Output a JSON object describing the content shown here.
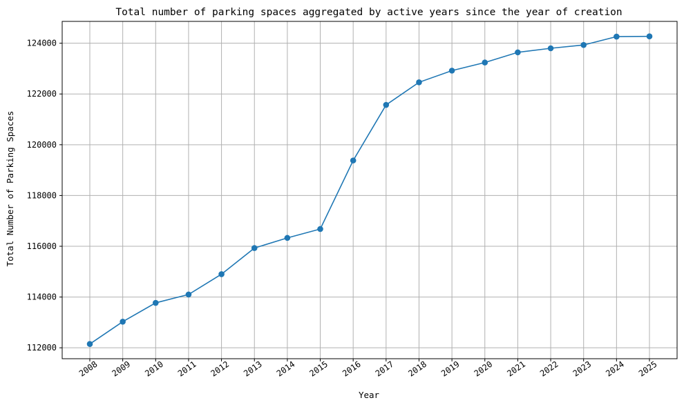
{
  "chart_data": {
    "type": "line",
    "title": "Total number of parking spaces aggregated by active years since the year of creation",
    "xlabel": "Year",
    "ylabel": "Total Number of Parking Spaces",
    "categories": [
      "2008",
      "2009",
      "2010",
      "2011",
      "2012",
      "2013",
      "2014",
      "2015",
      "2016",
      "2017",
      "2018",
      "2019",
      "2020",
      "2021",
      "2022",
      "2023",
      "2024",
      "2025"
    ],
    "values": [
      112150,
      113030,
      113770,
      114100,
      114900,
      115930,
      116330,
      116680,
      119380,
      121570,
      122460,
      122920,
      123240,
      123640,
      123800,
      123930,
      124260,
      124270
    ],
    "ylim": [
      111570,
      124860
    ],
    "yticks": [
      112000,
      114000,
      116000,
      118000,
      120000,
      122000,
      124000
    ],
    "ytick_labels": [
      "112000",
      "114000",
      "116000",
      "118000",
      "120000",
      "122000",
      "124000"
    ],
    "grid": true,
    "line_color": "#1f77b4",
    "marker": "circle"
  }
}
